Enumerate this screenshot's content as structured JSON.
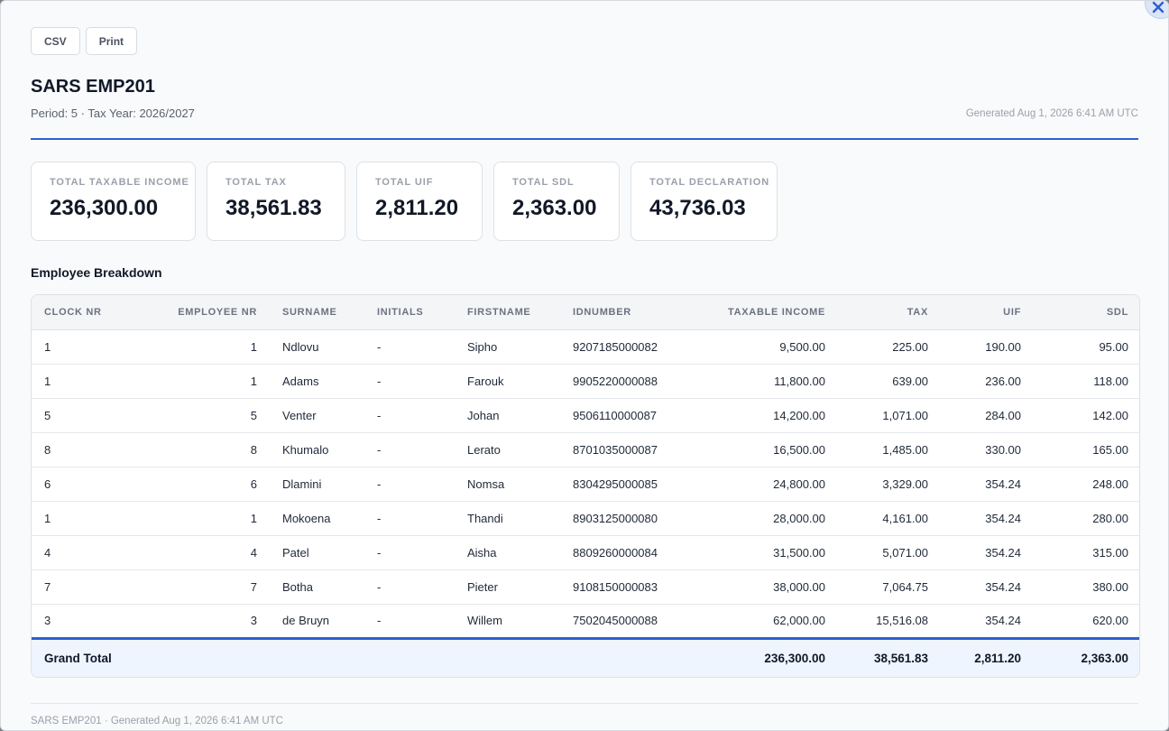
{
  "toolbar": {
    "csv_label": "CSV",
    "print_label": "Print"
  },
  "report": {
    "title": "SARS EMP201",
    "subtitle": "Period: 5 · Tax Year: 2026/2027",
    "generated": "Generated Aug 1, 2026 6:41 AM UTC"
  },
  "summary": {
    "taxable_income": {
      "label": "TOTAL TAXABLE INCOME",
      "value": "236,300.00"
    },
    "tax": {
      "label": "TOTAL TAX",
      "value": "38,561.83"
    },
    "uif": {
      "label": "TOTAL UIF",
      "value": "2,811.20"
    },
    "sdl": {
      "label": "TOTAL SDL",
      "value": "2,363.00"
    },
    "declaration": {
      "label": "TOTAL DECLARATION",
      "value": "43,736.03"
    }
  },
  "breakdown": {
    "title": "Employee Breakdown",
    "columns": [
      "CLOCK NR",
      "EMPLOYEE NR",
      "SURNAME",
      "INITIALS",
      "FIRSTNAME",
      "IDNUMBER",
      "TAXABLE INCOME",
      "TAX",
      "UIF",
      "SDL"
    ],
    "rows": [
      [
        "1",
        "1",
        "Ndlovu",
        "-",
        "Sipho",
        "9207185000082",
        "9,500.00",
        "225.00",
        "190.00",
        "95.00"
      ],
      [
        "1",
        "1",
        "Adams",
        "-",
        "Farouk",
        "9905220000088",
        "11,800.00",
        "639.00",
        "236.00",
        "118.00"
      ],
      [
        "5",
        "5",
        "Venter",
        "-",
        "Johan",
        "9506110000087",
        "14,200.00",
        "1,071.00",
        "284.00",
        "142.00"
      ],
      [
        "8",
        "8",
        "Khumalo",
        "-",
        "Lerato",
        "8701035000087",
        "16,500.00",
        "1,485.00",
        "330.00",
        "165.00"
      ],
      [
        "6",
        "6",
        "Dlamini",
        "-",
        "Nomsa",
        "8304295000085",
        "24,800.00",
        "3,329.00",
        "354.24",
        "248.00"
      ],
      [
        "1",
        "1",
        "Mokoena",
        "-",
        "Thandi",
        "8903125000080",
        "28,000.00",
        "4,161.00",
        "354.24",
        "280.00"
      ],
      [
        "4",
        "4",
        "Patel",
        "-",
        "Aisha",
        "8809260000084",
        "31,500.00",
        "5,071.00",
        "354.24",
        "315.00"
      ],
      [
        "7",
        "7",
        "Botha",
        "-",
        "Pieter",
        "9108150000083",
        "38,000.00",
        "7,064.75",
        "354.24",
        "380.00"
      ],
      [
        "3",
        "3",
        "de Bruyn",
        "-",
        "Willem",
        "7502045000088",
        "62,000.00",
        "15,516.08",
        "354.24",
        "620.00"
      ]
    ],
    "grand_total": {
      "label": "Grand Total",
      "taxable_income": "236,300.00",
      "tax": "38,561.83",
      "uif": "2,811.20",
      "sdl": "2,363.00"
    }
  },
  "footer": {
    "text": "SARS EMP201 · Generated Aug 1, 2026 6:41 AM UTC"
  },
  "icons": {
    "close": "close-icon"
  },
  "colors": {
    "accent": "#2f5ecf",
    "total_row_bg": "#eef5ff"
  }
}
